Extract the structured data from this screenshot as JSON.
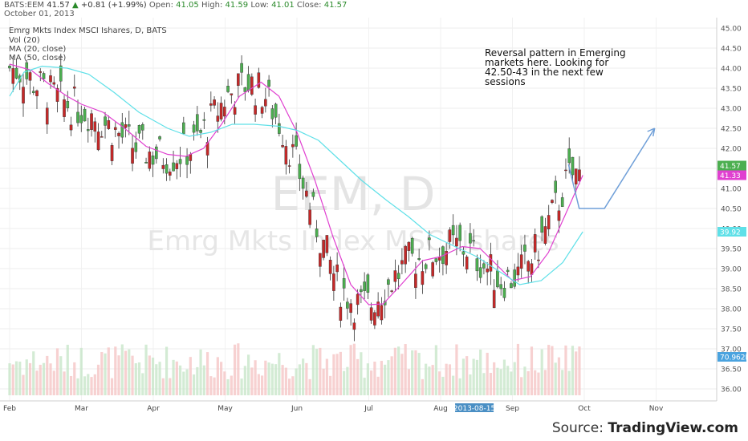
{
  "header": {
    "symbol": "BATS:EEM",
    "last": "41.57",
    "change": "+0.81 (+1.99%)",
    "open_label": "Open:",
    "open": "41.05",
    "high_label": "High:",
    "high": "41.59",
    "low_label": "Low:",
    "low": "41.01",
    "close_label": "Close:",
    "close": "41.57",
    "date": "October 01, 2013"
  },
  "legend": {
    "title": "Emrg Mkts Index MSCI Ishares, D, BATS",
    "vol": "Vol (20)",
    "ma20": "MA (20, close)",
    "ma50": "MA (50, close)"
  },
  "watermark": {
    "big": "EEM, D",
    "small": "Emrg Mkts Index MSCI Ishares"
  },
  "annotation": "Reversal pattern in Emerging markets here. Looking for 42.50-43 in the next few sessions",
  "source": {
    "prefix": "Source:",
    "brand": "TradingView.com"
  },
  "colors": {
    "up": "#4caf50",
    "down": "#c62828",
    "ma20": "#e040d0",
    "ma50": "#5fe0e8",
    "vol_up": "#c8e6c9",
    "vol_down": "#f5c6c6",
    "arrow": "#6f9fd8"
  },
  "chart_data": {
    "type": "candlestick",
    "title": "Emrg Mkts Index MSCI Ishares, D, BATS",
    "y_ticks": [
      "36.00",
      "36.50",
      "37.00",
      "37.50",
      "38.00",
      "38.50",
      "39.00",
      "39.50",
      "40.00",
      "40.50",
      "41.00",
      "41.50",
      "42.00",
      "42.50",
      "43.00",
      "43.50",
      "44.00",
      "44.50",
      "45.00"
    ],
    "ylim": [
      35.75,
      45.25
    ],
    "x_ticks": [
      "Feb",
      "Mar",
      "Apr",
      "May",
      "Jun",
      "Jul",
      "Aug",
      "Sep",
      "Oct",
      "Nov"
    ],
    "x_highlight": "2013-08-15",
    "price_labels": [
      {
        "value": "41.57",
        "color": "#4caf50"
      },
      {
        "value": "41.33",
        "color": "#e040d0"
      },
      {
        "value": "39.92",
        "color": "#5fe0e8"
      },
      {
        "value": "70.962M",
        "color": "#4aa3df"
      }
    ],
    "series": [
      {
        "name": "MA (20, close)",
        "points": [
          [
            0,
            44.1
          ],
          [
            0.3,
            43.95
          ],
          [
            0.55,
            43.6
          ],
          [
            0.8,
            43.3
          ],
          [
            1.0,
            43.1
          ],
          [
            1.3,
            42.9
          ],
          [
            1.6,
            42.5
          ],
          [
            1.9,
            42.05
          ],
          [
            2.2,
            41.85
          ],
          [
            2.45,
            41.8
          ],
          [
            2.7,
            42.0
          ],
          [
            2.95,
            42.6
          ],
          [
            3.2,
            43.3
          ],
          [
            3.5,
            43.65
          ],
          [
            3.75,
            43.3
          ],
          [
            4.0,
            42.4
          ],
          [
            4.25,
            41.2
          ],
          [
            4.5,
            39.8
          ],
          [
            4.75,
            38.6
          ],
          [
            5.0,
            38.1
          ],
          [
            5.2,
            38.12
          ],
          [
            5.45,
            38.6
          ],
          [
            5.75,
            39.2
          ],
          [
            6.0,
            39.3
          ],
          [
            6.3,
            39.55
          ],
          [
            6.55,
            39.5
          ],
          [
            6.75,
            39.15
          ],
          [
            7.0,
            38.7
          ],
          [
            7.25,
            38.8
          ],
          [
            7.5,
            39.4
          ],
          [
            7.75,
            40.4
          ],
          [
            7.98,
            41.33
          ]
        ]
      },
      {
        "name": "MA (50, close)",
        "points": [
          [
            0,
            43.3
          ],
          [
            0.2,
            43.9
          ],
          [
            0.45,
            44.05
          ],
          [
            0.8,
            44.0
          ],
          [
            1.1,
            43.85
          ],
          [
            1.45,
            43.4
          ],
          [
            1.8,
            42.9
          ],
          [
            2.2,
            42.5
          ],
          [
            2.5,
            42.3
          ],
          [
            2.8,
            42.4
          ],
          [
            3.1,
            42.6
          ],
          [
            3.4,
            42.6
          ],
          [
            3.75,
            42.55
          ],
          [
            4.0,
            42.45
          ],
          [
            4.3,
            42.2
          ],
          [
            4.6,
            41.7
          ],
          [
            4.9,
            41.2
          ],
          [
            5.25,
            40.7
          ],
          [
            5.55,
            40.3
          ],
          [
            5.85,
            39.85
          ],
          [
            6.2,
            39.55
          ],
          [
            6.5,
            39.3
          ],
          [
            6.8,
            38.95
          ],
          [
            7.1,
            38.6
          ],
          [
            7.4,
            38.7
          ],
          [
            7.7,
            39.15
          ],
          [
            7.98,
            39.92
          ]
        ]
      }
    ],
    "volume_note": "Volume bars shown in lower panel"
  }
}
